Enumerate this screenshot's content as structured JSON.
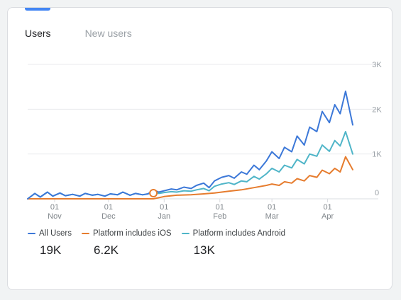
{
  "tabs": [
    {
      "label": "Users",
      "active": true
    },
    {
      "label": "New users",
      "active": false
    }
  ],
  "colors": {
    "all_users": "#3c78d8",
    "ios": "#e67c2e",
    "android": "#4fb5c8"
  },
  "legend": [
    {
      "label": "All Users",
      "value": "19K",
      "color": "#3c78d8"
    },
    {
      "label": "Platform includes iOS",
      "value": "6.2K",
      "color": "#e67c2e"
    },
    {
      "label": "Platform includes Android",
      "value": "13K",
      "color": "#4fb5c8"
    }
  ],
  "chart_data": {
    "type": "line",
    "x_range": [
      "2023-10-17",
      "2024-04-15"
    ],
    "y_ticks": [
      {
        "label": "3K",
        "value": 3000
      },
      {
        "label": "2K",
        "value": 2000
      },
      {
        "label": "1K",
        "value": 1000
      },
      {
        "label": "0",
        "value": 0
      }
    ],
    "ylim": [
      0,
      3000
    ],
    "x_ticks": [
      {
        "day": "01",
        "month": "Nov",
        "date": "2023-11-01"
      },
      {
        "day": "01",
        "month": "Dec",
        "date": "2023-12-01"
      },
      {
        "day": "01",
        "month": "Jan",
        "date": "2024-01-01"
      },
      {
        "day": "01",
        "month": "Feb",
        "date": "2024-02-01"
      },
      {
        "day": "01",
        "month": "Mar",
        "date": "2024-03-01"
      },
      {
        "day": "01",
        "month": "Apr",
        "date": "2024-04-01"
      }
    ],
    "marker_date": "2023-12-26",
    "grid": true,
    "legend_position": "bottom",
    "series": [
      {
        "name": "All Users",
        "points": [
          [
            "2023-10-17",
            0
          ],
          [
            "2023-10-21",
            120
          ],
          [
            "2023-10-24",
            40
          ],
          [
            "2023-10-28",
            150
          ],
          [
            "2023-10-31",
            60
          ],
          [
            "2023-11-04",
            130
          ],
          [
            "2023-11-07",
            70
          ],
          [
            "2023-11-11",
            100
          ],
          [
            "2023-11-15",
            60
          ],
          [
            "2023-11-18",
            120
          ],
          [
            "2023-11-22",
            80
          ],
          [
            "2023-11-25",
            100
          ],
          [
            "2023-11-29",
            60
          ],
          [
            "2023-12-02",
            110
          ],
          [
            "2023-12-06",
            90
          ],
          [
            "2023-12-09",
            150
          ],
          [
            "2023-12-13",
            80
          ],
          [
            "2023-12-16",
            120
          ],
          [
            "2023-12-20",
            90
          ],
          [
            "2023-12-23",
            110
          ],
          [
            "2023-12-26",
            200
          ],
          [
            "2023-12-29",
            150
          ],
          [
            "2024-01-01",
            180
          ],
          [
            "2024-01-05",
            220
          ],
          [
            "2024-01-08",
            200
          ],
          [
            "2024-01-12",
            260
          ],
          [
            "2024-01-16",
            230
          ],
          [
            "2024-01-19",
            300
          ],
          [
            "2024-01-23",
            350
          ],
          [
            "2024-01-26",
            250
          ],
          [
            "2024-01-29",
            400
          ],
          [
            "2024-02-02",
            480
          ],
          [
            "2024-02-06",
            520
          ],
          [
            "2024-02-09",
            460
          ],
          [
            "2024-02-13",
            600
          ],
          [
            "2024-02-16",
            550
          ],
          [
            "2024-02-20",
            750
          ],
          [
            "2024-02-23",
            650
          ],
          [
            "2024-02-27",
            850
          ],
          [
            "2024-03-01",
            1050
          ],
          [
            "2024-03-05",
            900
          ],
          [
            "2024-03-08",
            1150
          ],
          [
            "2024-03-12",
            1050
          ],
          [
            "2024-03-15",
            1400
          ],
          [
            "2024-03-19",
            1200
          ],
          [
            "2024-03-22",
            1600
          ],
          [
            "2024-03-26",
            1500
          ],
          [
            "2024-03-29",
            1950
          ],
          [
            "2024-04-02",
            1700
          ],
          [
            "2024-04-05",
            2100
          ],
          [
            "2024-04-08",
            1900
          ],
          [
            "2024-04-11",
            2400
          ],
          [
            "2024-04-15",
            1650
          ]
        ]
      },
      {
        "name": "Platform includes iOS",
        "points": [
          [
            "2023-10-17",
            0
          ],
          [
            "2023-11-15",
            0
          ],
          [
            "2023-12-26",
            0
          ],
          [
            "2024-01-01",
            50
          ],
          [
            "2024-01-08",
            80
          ],
          [
            "2024-01-16",
            90
          ],
          [
            "2024-01-23",
            110
          ],
          [
            "2024-01-29",
            130
          ],
          [
            "2024-02-02",
            150
          ],
          [
            "2024-02-06",
            170
          ],
          [
            "2024-02-13",
            200
          ],
          [
            "2024-02-20",
            250
          ],
          [
            "2024-02-27",
            300
          ],
          [
            "2024-03-01",
            330
          ],
          [
            "2024-03-05",
            300
          ],
          [
            "2024-03-08",
            380
          ],
          [
            "2024-03-12",
            350
          ],
          [
            "2024-03-15",
            450
          ],
          [
            "2024-03-19",
            400
          ],
          [
            "2024-03-22",
            520
          ],
          [
            "2024-03-26",
            480
          ],
          [
            "2024-03-29",
            640
          ],
          [
            "2024-04-02",
            560
          ],
          [
            "2024-04-05",
            680
          ],
          [
            "2024-04-08",
            600
          ],
          [
            "2024-04-11",
            940
          ],
          [
            "2024-04-15",
            650
          ]
        ]
      },
      {
        "name": "Platform includes Android",
        "points": [
          [
            "2023-10-17",
            0
          ],
          [
            "2023-10-21",
            120
          ],
          [
            "2023-10-24",
            40
          ],
          [
            "2023-10-28",
            150
          ],
          [
            "2023-10-31",
            60
          ],
          [
            "2023-11-04",
            130
          ],
          [
            "2023-11-07",
            70
          ],
          [
            "2023-11-11",
            100
          ],
          [
            "2023-11-15",
            60
          ],
          [
            "2023-11-18",
            120
          ],
          [
            "2023-11-22",
            80
          ],
          [
            "2023-11-25",
            100
          ],
          [
            "2023-11-29",
            60
          ],
          [
            "2023-12-02",
            110
          ],
          [
            "2023-12-06",
            90
          ],
          [
            "2023-12-09",
            150
          ],
          [
            "2023-12-13",
            80
          ],
          [
            "2023-12-16",
            120
          ],
          [
            "2023-12-20",
            90
          ],
          [
            "2023-12-23",
            110
          ],
          [
            "2023-12-26",
            150
          ],
          [
            "2023-12-29",
            120
          ],
          [
            "2024-01-01",
            140
          ],
          [
            "2024-01-05",
            160
          ],
          [
            "2024-01-08",
            150
          ],
          [
            "2024-01-12",
            180
          ],
          [
            "2024-01-16",
            170
          ],
          [
            "2024-01-19",
            200
          ],
          [
            "2024-01-23",
            230
          ],
          [
            "2024-01-26",
            180
          ],
          [
            "2024-01-29",
            280
          ],
          [
            "2024-02-02",
            330
          ],
          [
            "2024-02-06",
            360
          ],
          [
            "2024-02-09",
            320
          ],
          [
            "2024-02-13",
            400
          ],
          [
            "2024-02-16",
            380
          ],
          [
            "2024-02-20",
            500
          ],
          [
            "2024-02-23",
            440
          ],
          [
            "2024-02-27",
            560
          ],
          [
            "2024-03-01",
            680
          ],
          [
            "2024-03-05",
            600
          ],
          [
            "2024-03-08",
            750
          ],
          [
            "2024-03-12",
            690
          ],
          [
            "2024-03-15",
            880
          ],
          [
            "2024-03-19",
            780
          ],
          [
            "2024-03-22",
            1000
          ],
          [
            "2024-03-26",
            950
          ],
          [
            "2024-03-29",
            1200
          ],
          [
            "2024-04-02",
            1060
          ],
          [
            "2024-04-05",
            1300
          ],
          [
            "2024-04-08",
            1180
          ],
          [
            "2024-04-11",
            1500
          ],
          [
            "2024-04-15",
            1000
          ]
        ]
      }
    ]
  }
}
